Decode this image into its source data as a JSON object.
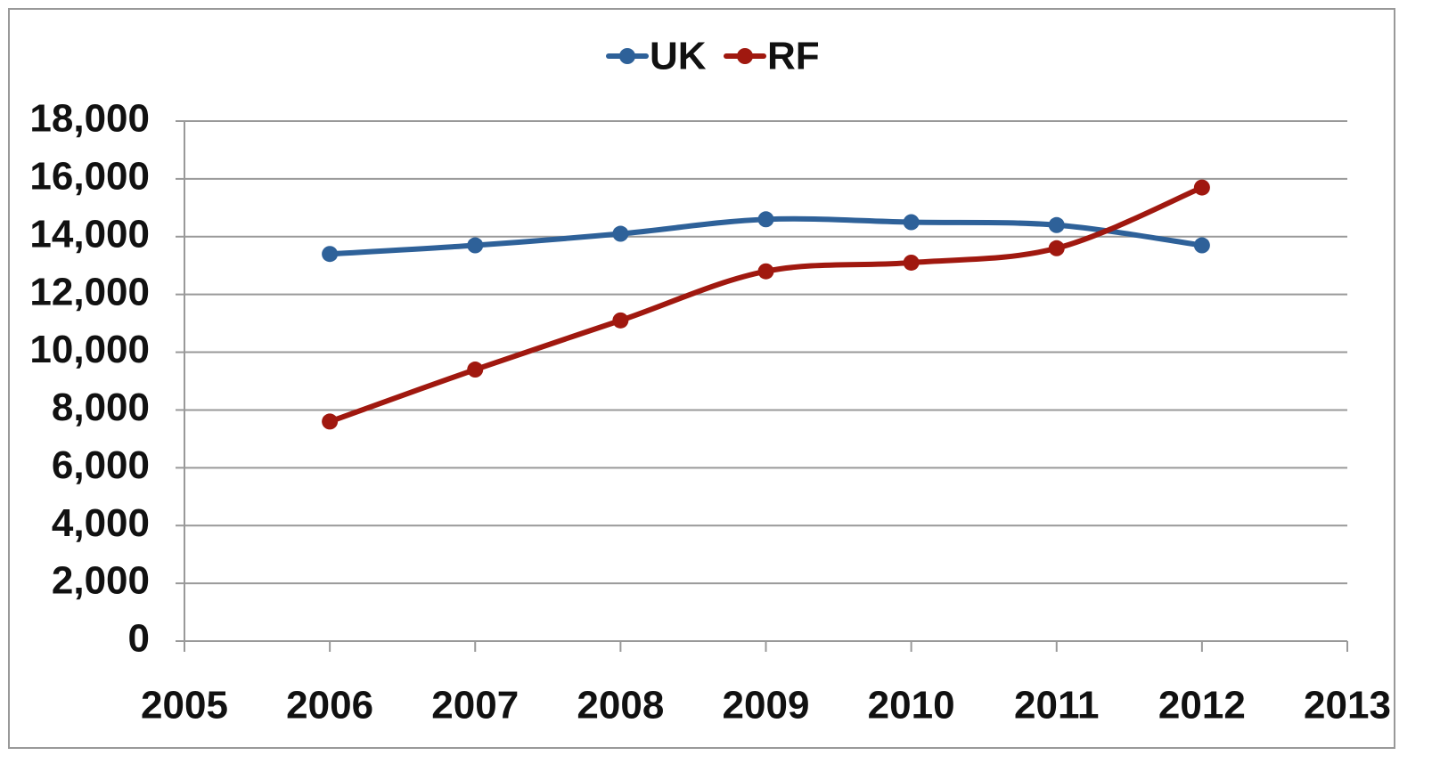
{
  "chart_data": {
    "type": "line",
    "x": [
      2006,
      2007,
      2008,
      2009,
      2010,
      2011,
      2012
    ],
    "series": [
      {
        "name": "UK",
        "color": "#2e6199",
        "values": [
          13400,
          13700,
          14100,
          14600,
          14500,
          14400,
          13700
        ]
      },
      {
        "name": "RF",
        "color": "#a0180f",
        "values": [
          7600,
          9400,
          11100,
          12800,
          13100,
          13600,
          15700
        ]
      }
    ],
    "xlim": [
      2005,
      2013
    ],
    "xticks": [
      2005,
      2006,
      2007,
      2008,
      2009,
      2010,
      2011,
      2012,
      2013
    ],
    "ylim": [
      0,
      18000
    ],
    "yticks": [
      0,
      {
        "value": 2000,
        "label": "2,000"
      },
      {
        "value": 4000,
        "label": "4,000"
      },
      {
        "value": 6000,
        "label": "6,000"
      },
      {
        "value": 8000,
        "label": "8,000"
      },
      {
        "value": 10000,
        "label": "10,000"
      },
      {
        "value": 12000,
        "label": "12,000"
      },
      {
        "value": 14000,
        "label": "14,000"
      },
      {
        "value": 16000,
        "label": "16,000"
      },
      {
        "value": 18000,
        "label": "18,000"
      }
    ],
    "grid": true,
    "legend": "top"
  }
}
